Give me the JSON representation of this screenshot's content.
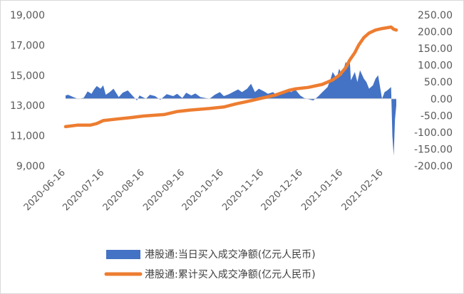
{
  "chart_data": {
    "type": "area+line",
    "title": "",
    "x_ticks": [
      "2020-06-16",
      "2020-07-16",
      "2020-08-16",
      "2020-09-16",
      "2020-10-16",
      "2020-11-16",
      "2020-12-16",
      "2021-01-16",
      "2021-02-16"
    ],
    "x_range": [
      "2020-06-16",
      "2021-02-26"
    ],
    "y_left": {
      "ticks": [
        "9,000",
        "11,000",
        "13,000",
        "15,000",
        "17,000",
        "19,000"
      ],
      "min": 9000,
      "max": 19000
    },
    "y_right": {
      "ticks": [
        "250.00",
        "200.00",
        "150.00",
        "100.00",
        "50.00",
        "0.00",
        "-50.00",
        "-100.00",
        "-150.00",
        "-200.00"
      ],
      "min": -200,
      "max": 250
    },
    "series": [
      {
        "name": "港股通:当日买入成交净额(亿元人民币)",
        "type": "area",
        "axis": "right",
        "color": "#4472C4",
        "points": [
          [
            "2020-06-16",
            10
          ],
          [
            "2020-06-18",
            12
          ],
          [
            "2020-06-22",
            5
          ],
          [
            "2020-06-26",
            -1
          ],
          [
            "2020-06-30",
            3
          ],
          [
            "2020-07-03",
            22
          ],
          [
            "2020-07-06",
            15
          ],
          [
            "2020-07-08",
            28
          ],
          [
            "2020-07-10",
            38
          ],
          [
            "2020-07-13",
            30
          ],
          [
            "2020-07-15",
            40
          ],
          [
            "2020-07-17",
            12
          ],
          [
            "2020-07-20",
            20
          ],
          [
            "2020-07-23",
            30
          ],
          [
            "2020-07-27",
            5
          ],
          [
            "2020-07-30",
            18
          ],
          [
            "2020-08-03",
            25
          ],
          [
            "2020-08-06",
            12
          ],
          [
            "2020-08-10",
            -5
          ],
          [
            "2020-08-12",
            10
          ],
          [
            "2020-08-17",
            0
          ],
          [
            "2020-08-20",
            12
          ],
          [
            "2020-08-24",
            8
          ],
          [
            "2020-08-28",
            -3
          ],
          [
            "2020-09-02",
            14
          ],
          [
            "2020-09-07",
            8
          ],
          [
            "2020-09-10",
            15
          ],
          [
            "2020-09-14",
            2
          ],
          [
            "2020-09-17",
            18
          ],
          [
            "2020-09-21",
            10
          ],
          [
            "2020-09-24",
            16
          ],
          [
            "2020-09-28",
            5
          ],
          [
            "2020-10-05",
            0
          ],
          [
            "2020-10-09",
            12
          ],
          [
            "2020-10-13",
            20
          ],
          [
            "2020-10-16",
            8
          ],
          [
            "2020-10-20",
            14
          ],
          [
            "2020-10-23",
            20
          ],
          [
            "2020-10-27",
            28
          ],
          [
            "2020-10-30",
            20
          ],
          [
            "2020-11-03",
            30
          ],
          [
            "2020-11-06",
            45
          ],
          [
            "2020-11-09",
            20
          ],
          [
            "2020-11-12",
            30
          ],
          [
            "2020-11-16",
            22
          ],
          [
            "2020-11-19",
            15
          ],
          [
            "2020-11-23",
            20
          ],
          [
            "2020-11-26",
            10
          ],
          [
            "2020-11-30",
            18
          ],
          [
            "2020-12-03",
            25
          ],
          [
            "2020-12-07",
            20
          ],
          [
            "2020-12-10",
            28
          ],
          [
            "2020-12-14",
            10
          ],
          [
            "2020-12-17",
            2
          ],
          [
            "2020-12-21",
            -2
          ],
          [
            "2020-12-24",
            -5
          ],
          [
            "2020-12-28",
            8
          ],
          [
            "2020-12-31",
            20
          ],
          [
            "2021-01-04",
            35
          ],
          [
            "2021-01-06",
            55
          ],
          [
            "2021-01-08",
            80
          ],
          [
            "2021-01-11",
            60
          ],
          [
            "2021-01-13",
            90
          ],
          [
            "2021-01-15",
            70
          ],
          [
            "2021-01-18",
            110
          ],
          [
            "2021-01-20",
            95
          ],
          [
            "2021-01-21",
            125
          ],
          [
            "2021-01-22",
            55
          ],
          [
            "2021-01-25",
            80
          ],
          [
            "2021-01-27",
            50
          ],
          [
            "2021-01-29",
            85
          ],
          [
            "2021-02-01",
            60
          ],
          [
            "2021-02-03",
            50
          ],
          [
            "2021-02-05",
            30
          ],
          [
            "2021-02-08",
            40
          ],
          [
            "2021-02-10",
            60
          ],
          [
            "2021-02-12",
            70
          ],
          [
            "2021-02-15",
            0
          ],
          [
            "2021-02-17",
            20
          ],
          [
            "2021-02-19",
            25
          ],
          [
            "2021-02-22",
            35
          ],
          [
            "2021-02-23",
            -110
          ],
          [
            "2021-02-24",
            -170
          ],
          [
            "2021-02-25",
            -60
          ],
          [
            "2021-02-26",
            -20
          ]
        ]
      },
      {
        "name": "港股通:累计买入成交净额(亿元人民币)",
        "type": "line",
        "axis": "left",
        "color": "#ED7D31",
        "points": [
          [
            "2020-06-16",
            11600
          ],
          [
            "2020-06-25",
            11700
          ],
          [
            "2020-07-05",
            11700
          ],
          [
            "2020-07-10",
            11800
          ],
          [
            "2020-07-15",
            12000
          ],
          [
            "2020-07-25",
            12100
          ],
          [
            "2020-08-05",
            12200
          ],
          [
            "2020-08-15",
            12300
          ],
          [
            "2020-08-31",
            12400
          ],
          [
            "2020-09-10",
            12600
          ],
          [
            "2020-09-20",
            12700
          ],
          [
            "2020-10-05",
            12800
          ],
          [
            "2020-10-16",
            12900
          ],
          [
            "2020-10-25",
            13100
          ],
          [
            "2020-11-05",
            13300
          ],
          [
            "2020-11-15",
            13500
          ],
          [
            "2020-11-25",
            13700
          ],
          [
            "2020-12-05",
            14000
          ],
          [
            "2020-12-10",
            14100
          ],
          [
            "2020-12-20",
            14200
          ],
          [
            "2020-12-31",
            14400
          ],
          [
            "2021-01-08",
            14700
          ],
          [
            "2021-01-13",
            15000
          ],
          [
            "2021-01-18",
            15500
          ],
          [
            "2021-01-21",
            16000
          ],
          [
            "2021-01-25",
            16500
          ],
          [
            "2021-01-28",
            17000
          ],
          [
            "2021-02-01",
            17500
          ],
          [
            "2021-02-05",
            17800
          ],
          [
            "2021-02-10",
            18000
          ],
          [
            "2021-02-15",
            18100
          ],
          [
            "2021-02-22",
            18200
          ],
          [
            "2021-02-24",
            18050
          ],
          [
            "2021-02-26",
            18000
          ]
        ]
      }
    ],
    "legend": {
      "position": "bottom"
    },
    "grid": false
  }
}
